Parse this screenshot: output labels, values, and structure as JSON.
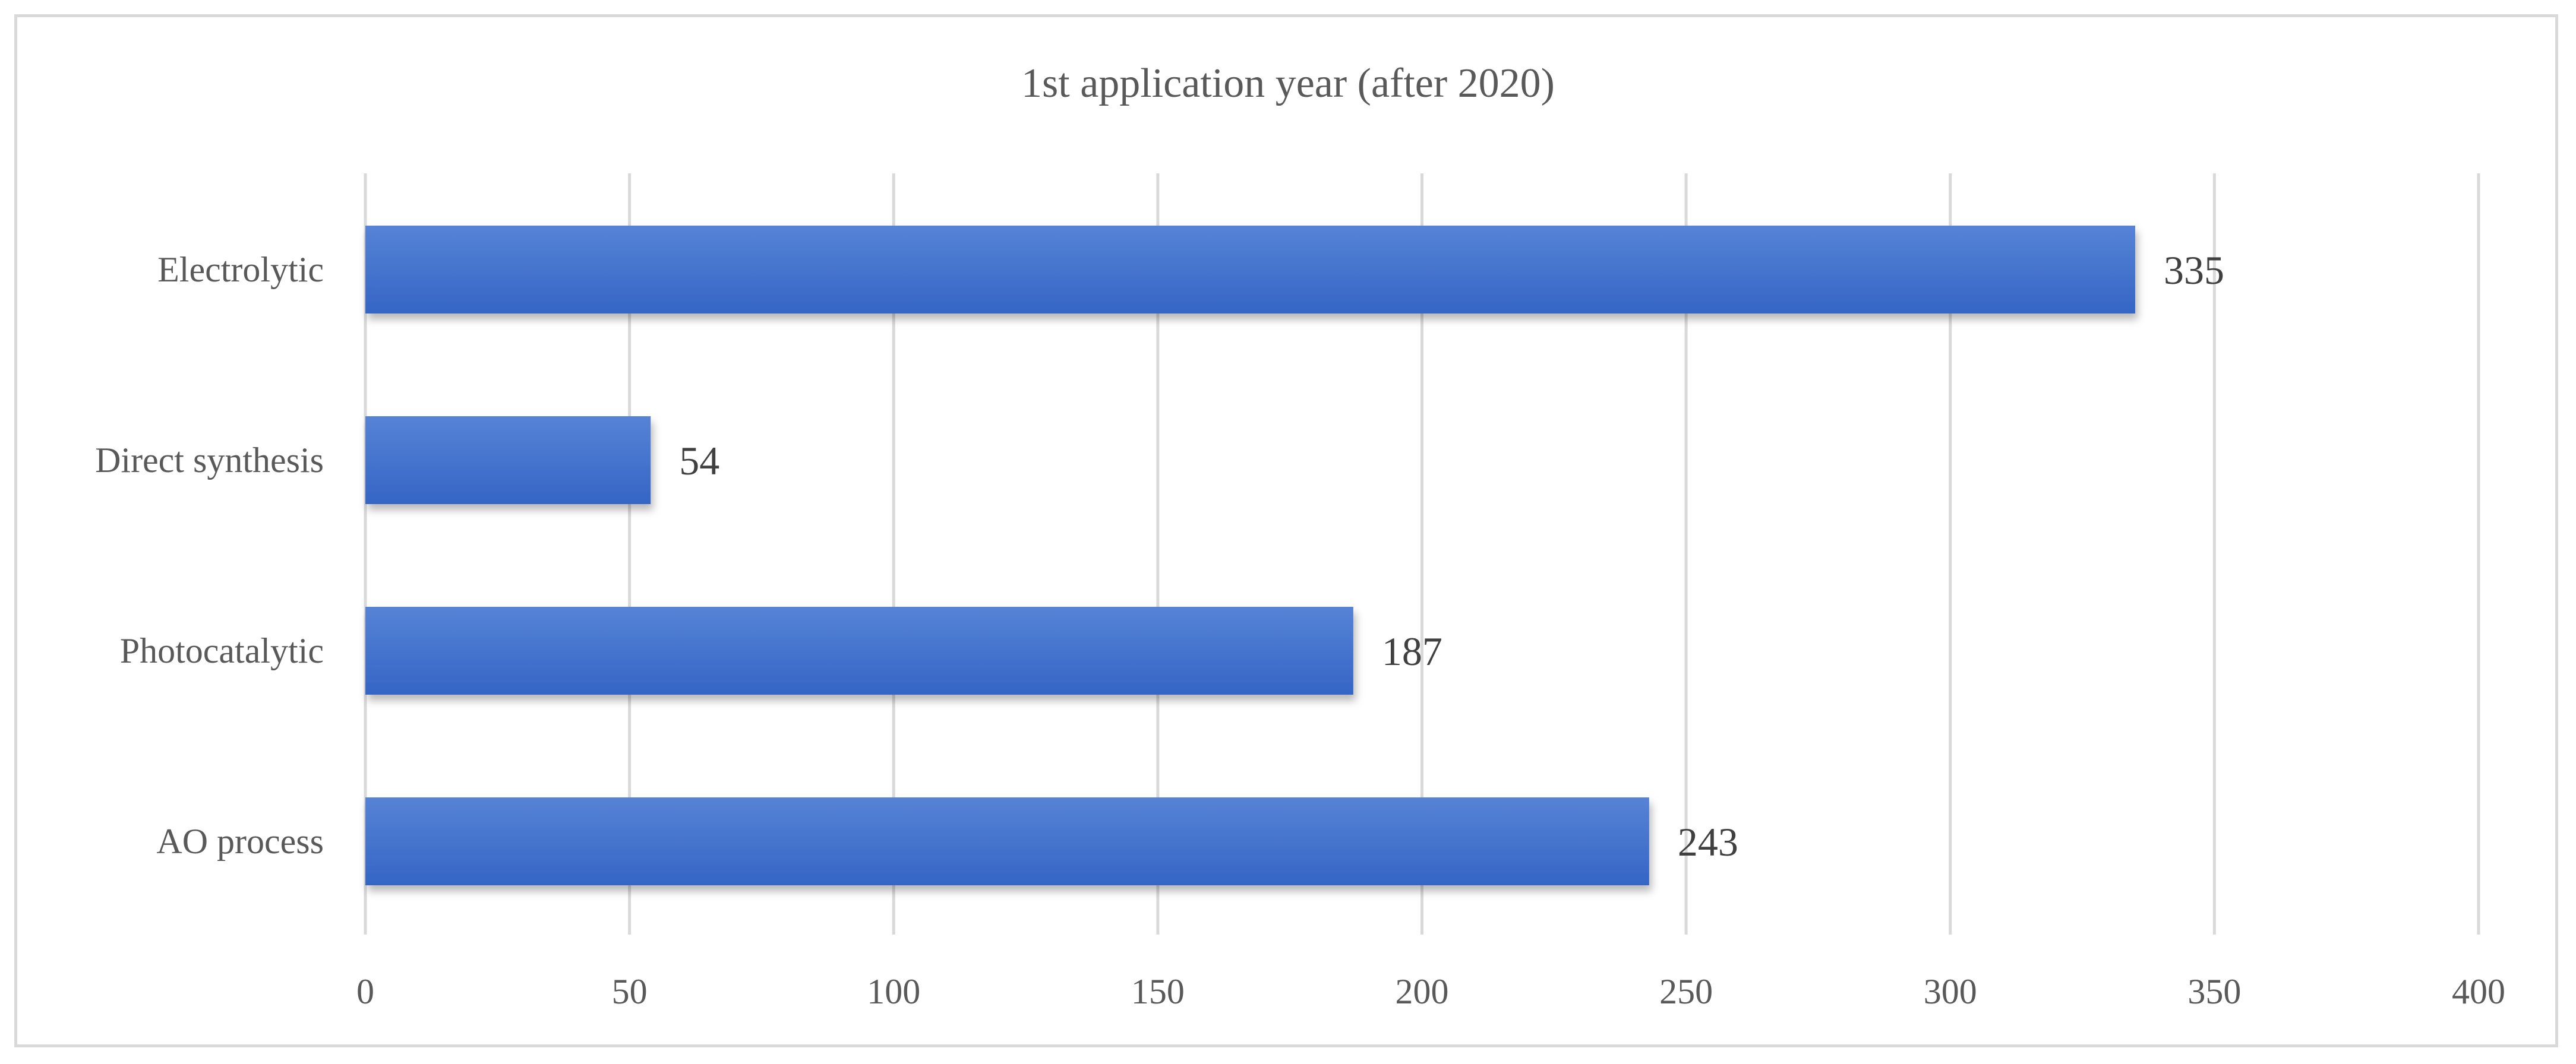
{
  "chart_data": {
    "type": "bar",
    "orientation": "horizontal",
    "title": "1st application year (after 2020)",
    "xlabel": "",
    "ylabel": "",
    "categories": [
      "Electrolytic",
      "Direct synthesis",
      "Photocatalytic",
      "AO process"
    ],
    "values": [
      335,
      54,
      187,
      243
    ],
    "xlim": [
      0,
      400
    ],
    "x_ticks": [
      0,
      50,
      100,
      150,
      200,
      250,
      300,
      350,
      400
    ],
    "grid": "vertical",
    "legend": "none",
    "data_labels": true,
    "bar_color": "#3565c5",
    "bar_color_light": "#5683d6"
  }
}
